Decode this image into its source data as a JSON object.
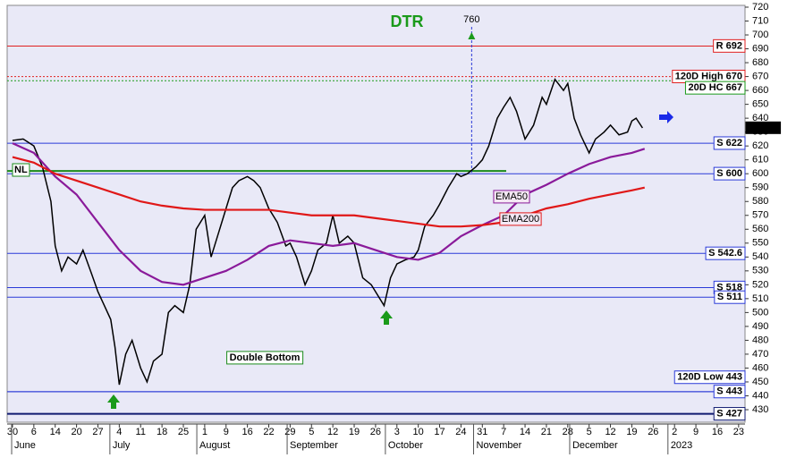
{
  "chart_data": {
    "type": "line",
    "title": "DTR",
    "x": [
      0,
      0.5,
      1,
      1.4,
      1.8,
      2,
      2.3,
      2.6,
      3,
      3.3,
      3.7,
      4,
      4.3,
      4.6,
      4.8,
      5,
      5.3,
      5.6,
      6,
      6.3,
      6.6,
      7,
      7.3,
      7.6,
      8,
      8.3,
      8.6,
      9,
      9.3,
      9.6,
      10,
      10.3,
      10.6,
      11,
      11.3,
      11.6,
      12,
      12.4,
      12.8,
      13,
      13.3,
      13.7,
      14,
      14.3,
      14.7,
      15,
      15.3,
      15.7,
      16,
      16.4,
      16.8,
      17,
      17.4,
      17.7,
      18,
      18.4,
      18.8,
      19,
      19.3,
      19.7,
      20,
      20.4,
      20.8,
      21,
      21.3,
      21.7,
      22,
      22.3,
      22.7,
      23,
      23.3,
      23.6,
      24,
      24.4,
      24.8,
      25,
      25.4,
      25.8,
      26,
      26.3,
      26.6,
      27,
      27.3,
      27.7,
      28,
      28.4,
      28.8,
      29,
      29.2,
      29.5
    ],
    "series": [
      {
        "color": "#000000",
        "values": [
          624,
          625,
          620,
          605,
          580,
          548,
          530,
          540,
          535,
          545,
          528,
          515,
          505,
          495,
          475,
          448,
          470,
          480,
          460,
          450,
          465,
          470,
          500,
          505,
          500,
          520,
          560,
          570,
          540,
          555,
          575,
          590,
          595,
          598,
          595,
          590,
          575,
          565,
          548,
          550,
          540,
          520,
          530,
          545,
          550,
          570,
          550,
          555,
          550,
          525,
          520,
          515,
          505,
          525,
          535,
          538,
          540,
          545,
          562,
          570,
          578,
          590,
          600,
          598,
          600,
          605,
          610,
          620,
          640,
          648,
          655,
          645,
          625,
          635,
          655,
          650,
          668,
          660,
          665,
          640,
          628,
          615,
          625,
          630,
          635,
          628,
          630,
          638,
          640,
          633
        ]
      },
      {
        "name": "EMA50",
        "color": "#8a1a9a",
        "x": [
          0,
          1,
          2,
          3,
          4,
          5,
          6,
          7,
          8,
          9,
          10,
          11,
          12,
          13,
          14,
          15,
          16,
          17,
          18,
          19,
          20,
          21,
          22,
          23,
          24,
          25,
          26,
          27,
          28,
          29,
          29.6
        ],
        "values": [
          622,
          615,
          598,
          585,
          565,
          545,
          530,
          522,
          520,
          525,
          530,
          538,
          548,
          552,
          550,
          548,
          550,
          545,
          540,
          538,
          543,
          555,
          563,
          570,
          585,
          592,
          600,
          607,
          612,
          615,
          618
        ]
      },
      {
        "name": "EMA200",
        "color": "#e01818",
        "x": [
          0,
          1,
          2,
          3,
          4,
          5,
          6,
          7,
          8,
          9,
          10,
          11,
          12,
          13,
          14,
          15,
          16,
          17,
          18,
          19,
          20,
          21,
          22,
          23,
          24,
          25,
          26,
          27,
          28,
          29,
          29.6
        ],
        "values": [
          612,
          608,
          600,
          595,
          590,
          585,
          580,
          577,
          575,
          574,
          574,
          574,
          574,
          572,
          570,
          570,
          570,
          568,
          566,
          564,
          562,
          562,
          563,
          565,
          570,
          575,
          578,
          582,
          585,
          588,
          590
        ]
      }
    ],
    "levels": [
      {
        "label": "R 692",
        "value": 692,
        "color": "#e02020"
      },
      {
        "label": "120D High 670",
        "value": 670,
        "color": "#e02020"
      },
      {
        "label": "20D HC 667",
        "value": 667,
        "color": "#1a9a1a"
      },
      {
        "label": "S 622",
        "value": 622,
        "color": "#2a3ad8"
      },
      {
        "label": "S 600",
        "value": 600,
        "color": "#2a3ad8"
      },
      {
        "label": "S 542.6",
        "value": 542.6,
        "color": "#2a3ad8"
      },
      {
        "label": "S 518",
        "value": 518,
        "color": "#2a3ad8"
      },
      {
        "label": "S 511",
        "value": 511,
        "color": "#2a3ad8"
      },
      {
        "label": "120D Low 443",
        "value": 443,
        "color": "#2a3ad8"
      },
      {
        "label": "S 443",
        "value": 443,
        "color": "#2a3ad8"
      },
      {
        "label": "S 427",
        "value": 427,
        "color": "#101a70"
      }
    ],
    "neckline": {
      "label": "NL",
      "value": 602
    },
    "marker": {
      "label": "760",
      "x": 21.5
    },
    "pattern_label": "Double Bottom",
    "last_price": {
      "value": 633.21,
      "label": "633.210"
    },
    "ylim": [
      430,
      720
    ],
    "yticks": [
      430,
      440,
      450,
      460,
      470,
      480,
      490,
      500,
      510,
      520,
      530,
      540,
      550,
      560,
      570,
      580,
      590,
      600,
      610,
      620,
      630,
      640,
      650,
      660,
      670,
      680,
      690,
      700,
      710,
      720
    ],
    "xlim": [
      -0.25,
      34.3
    ],
    "xticks": [
      {
        "value": 0,
        "label": "30"
      },
      {
        "value": 1,
        "label": "6"
      },
      {
        "value": 2,
        "label": "14"
      },
      {
        "value": 3,
        "label": "20"
      },
      {
        "value": 4,
        "label": "27"
      },
      {
        "value": 5,
        "label": "4"
      },
      {
        "value": 6,
        "label": "11"
      },
      {
        "value": 7,
        "label": "18"
      },
      {
        "value": 8,
        "label": "25"
      },
      {
        "value": 9,
        "label": "1"
      },
      {
        "value": 10,
        "label": "9"
      },
      {
        "value": 11,
        "label": "16"
      },
      {
        "value": 12,
        "label": "22"
      },
      {
        "value": 13,
        "label": "29"
      },
      {
        "value": 14,
        "label": "5"
      },
      {
        "value": 15,
        "label": "12"
      },
      {
        "value": 16,
        "label": "19"
      },
      {
        "value": 17,
        "label": "26"
      },
      {
        "value": 18,
        "label": "3"
      },
      {
        "value": 19,
        "label": "10"
      },
      {
        "value": 20,
        "label": "17"
      },
      {
        "value": 21,
        "label": "24"
      },
      {
        "value": 22,
        "label": "31"
      },
      {
        "value": 23,
        "label": "7"
      },
      {
        "value": 24,
        "label": "14"
      },
      {
        "value": 25,
        "label": "21"
      },
      {
        "value": 26,
        "label": "28"
      },
      {
        "value": 27,
        "label": "5"
      },
      {
        "value": 28,
        "label": "12"
      },
      {
        "value": 29,
        "label": "19"
      },
      {
        "value": 30,
        "label": "26"
      },
      {
        "value": 31,
        "label": "2"
      },
      {
        "value": 32,
        "label": "9"
      },
      {
        "value": 33,
        "label": "16"
      },
      {
        "value": 34,
        "label": "23"
      }
    ],
    "months": [
      {
        "value": 0.17,
        "label": "June"
      },
      {
        "value": 4.77,
        "label": "July"
      },
      {
        "value": 8.84,
        "label": "August"
      },
      {
        "value": 13.07,
        "label": "September"
      },
      {
        "value": 17.67,
        "label": "October"
      },
      {
        "value": 21.8,
        "label": "November"
      },
      {
        "value": 26.3,
        "label": "December"
      },
      {
        "value": 30.9,
        "label": "2023"
      }
    ]
  }
}
